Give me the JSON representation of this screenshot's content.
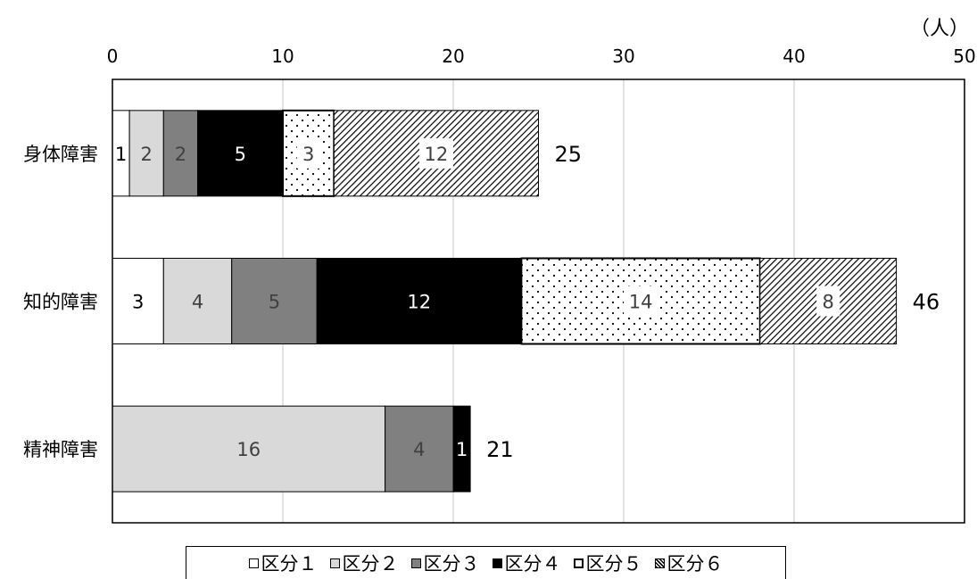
{
  "chart_data": {
    "type": "bar",
    "orientation": "horizontal",
    "stacked": true,
    "unit": "（人）",
    "xlim": [
      0,
      50
    ],
    "xticks": [
      0,
      10,
      20,
      30,
      40,
      50
    ],
    "grid": true,
    "legend_position": "bottom",
    "categories": [
      "身体障害",
      "知的障害",
      "精神障害"
    ],
    "series": [
      {
        "name": "区分１",
        "values": [
          1,
          3,
          null
        ],
        "color": "#ffffff",
        "pattern": "none",
        "label_color": "#000000"
      },
      {
        "name": "区分２",
        "values": [
          2,
          4,
          16
        ],
        "color": "#d9d9d9",
        "pattern": "none",
        "label_color": "#404040"
      },
      {
        "name": "区分３",
        "values": [
          2,
          5,
          4
        ],
        "color": "#808080",
        "pattern": "none",
        "label_color": "#404040"
      },
      {
        "name": "区分４",
        "values": [
          5,
          12,
          1
        ],
        "color": "#000000",
        "pattern": "none",
        "label_color": "#ffffff"
      },
      {
        "name": "区分５",
        "values": [
          3,
          14,
          null
        ],
        "color": "#ffffff",
        "pattern": "dots",
        "label_color": "#404040"
      },
      {
        "name": "区分６",
        "values": [
          12,
          8,
          null
        ],
        "color": "#ffffff",
        "pattern": "diagonal",
        "label_color": "#404040"
      }
    ],
    "totals": [
      25,
      46,
      21
    ]
  }
}
